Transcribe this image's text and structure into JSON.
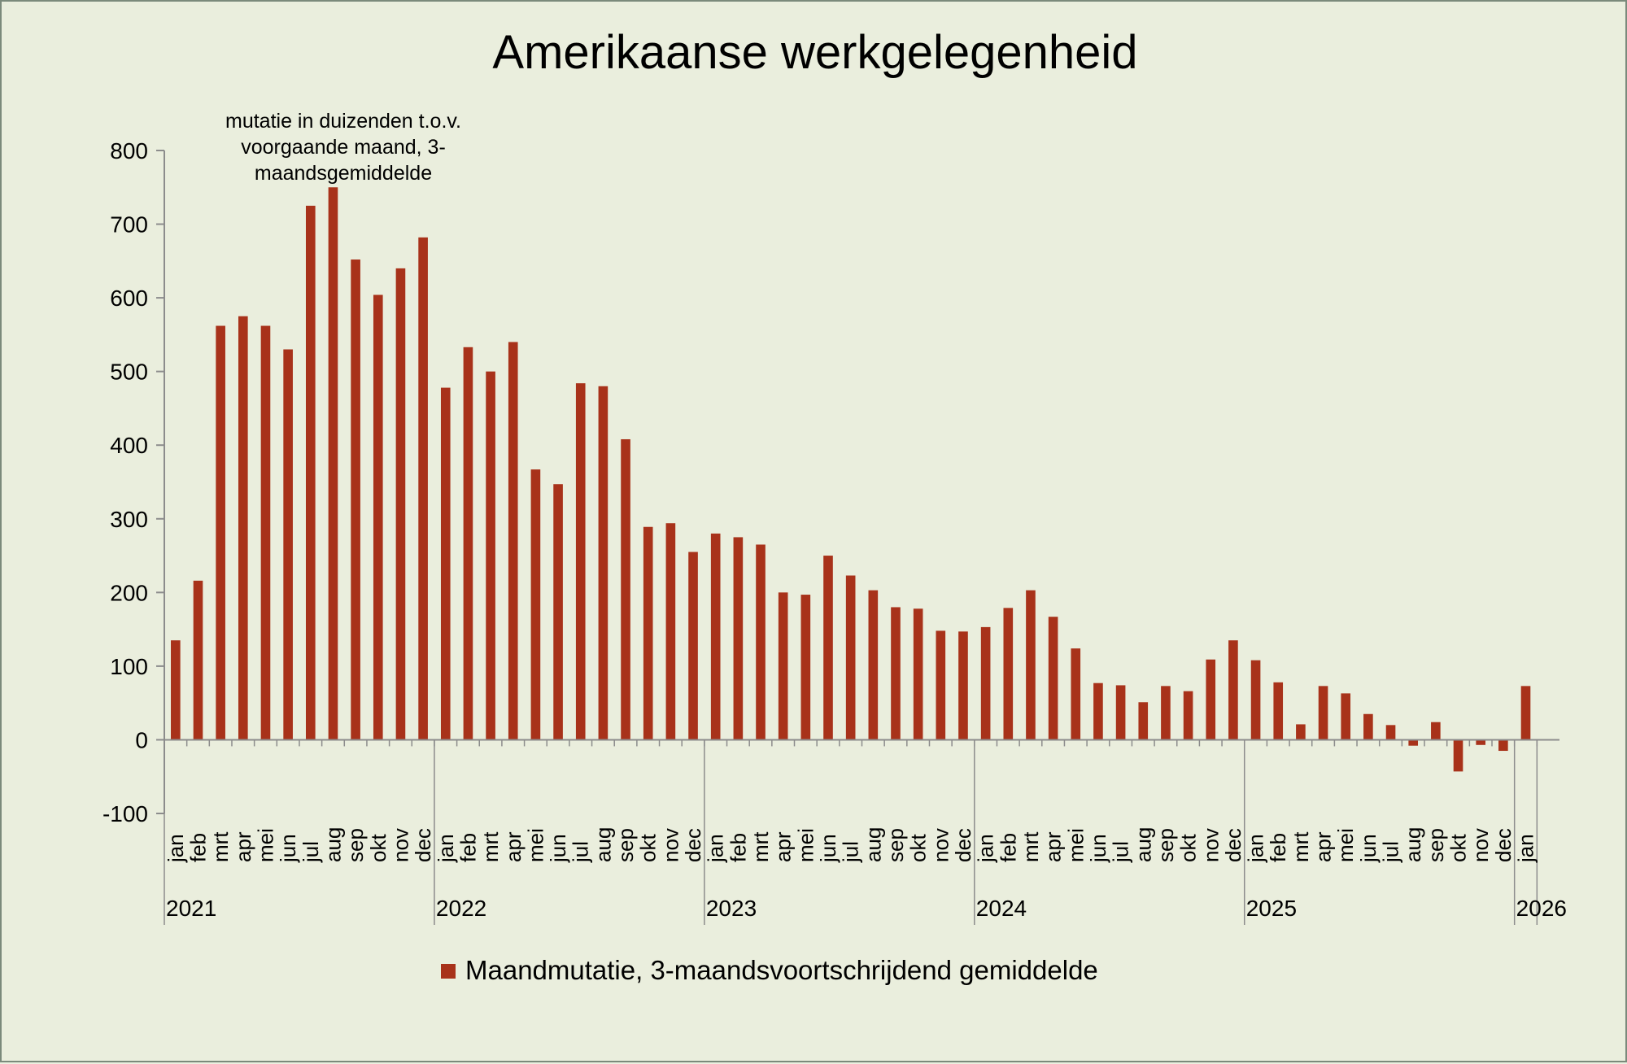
{
  "chart_data": {
    "type": "bar",
    "title": "Amerikaanse werkgelegenheid",
    "annotation_lines": [
      "mutatie in duizenden t.o.v.",
      "voorgaande maand, 3-",
      "maandsgemiddelde"
    ],
    "legend_label": "Maandmutatie, 3-maandsvoortschrijdend gemiddelde",
    "legend_position": "bottom",
    "ylim": [
      -100,
      800
    ],
    "yticks": [
      "-100",
      "0",
      "100",
      "200",
      "300",
      "400",
      "500",
      "600",
      "700",
      "800"
    ],
    "series_color": "#a8321a",
    "categories": [
      "jan",
      "feb",
      "mrt",
      "apr",
      "mei",
      "jun",
      "jul",
      "aug",
      "sep",
      "okt",
      "nov",
      "dec",
      "jan",
      "feb",
      "mrt",
      "apr",
      "mei",
      "jun",
      "jul",
      "aug",
      "sep",
      "okt",
      "nov",
      "dec",
      "jan",
      "feb",
      "mrt",
      "apr",
      "mei",
      "jun",
      "jul",
      "aug",
      "sep",
      "okt",
      "nov",
      "dec",
      "jan",
      "feb",
      "mrt",
      "apr",
      "mei",
      "jun",
      "jul",
      "aug",
      "sep",
      "okt",
      "nov",
      "dec",
      "jan",
      "feb",
      "mrt",
      "apr",
      "mei",
      "jun",
      "jul",
      "aug",
      "sep",
      "okt",
      "nov",
      "dec",
      "jan"
    ],
    "years": [
      {
        "label": "2021",
        "start": 0,
        "count": 12
      },
      {
        "label": "2022",
        "start": 12,
        "count": 12
      },
      {
        "label": "2023",
        "start": 24,
        "count": 12
      },
      {
        "label": "2024",
        "start": 36,
        "count": 12
      },
      {
        "label": "2025",
        "start": 48,
        "count": 12
      },
      {
        "label": "2026",
        "start": 60,
        "count": 1
      }
    ],
    "series": [
      {
        "name": "Maandmutatie, 3-maandsvoortschrijdend gemiddelde",
        "values": [
          135,
          216,
          562,
          575,
          562,
          530,
          725,
          750,
          652,
          604,
          640,
          682,
          478,
          533,
          500,
          540,
          367,
          347,
          484,
          480,
          408,
          289,
          294,
          255,
          280,
          275,
          265,
          200,
          197,
          250,
          223,
          203,
          180,
          178,
          148,
          147,
          153,
          179,
          203,
          167,
          124,
          77,
          74,
          51,
          73,
          66,
          109,
          135,
          108,
          78,
          21,
          73,
          63,
          35,
          20,
          -8,
          24,
          -43,
          -7,
          -15,
          73
        ]
      }
    ]
  }
}
